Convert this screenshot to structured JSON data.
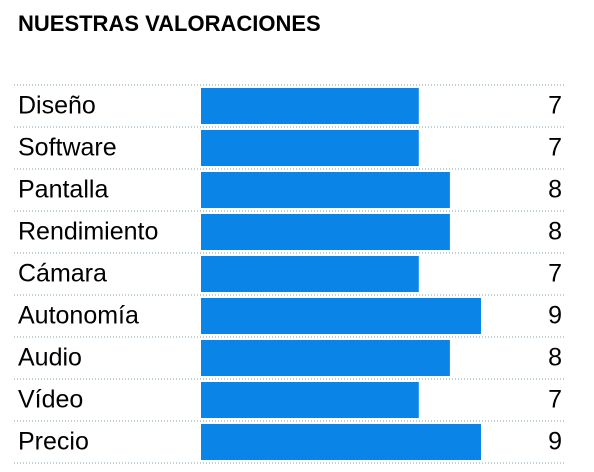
{
  "chart_data": {
    "type": "bar",
    "orientation": "horizontal",
    "title": "NUESTRAS VALORACIONES",
    "categories": [
      "Diseño",
      "Software",
      "Pantalla",
      "Rendimiento",
      "Cámara",
      "Autonomía",
      "Audio",
      "Vídeo",
      "Precio"
    ],
    "values": [
      7,
      7,
      8,
      8,
      7,
      9,
      8,
      7,
      9
    ],
    "color": "#0a84e6"
  }
}
